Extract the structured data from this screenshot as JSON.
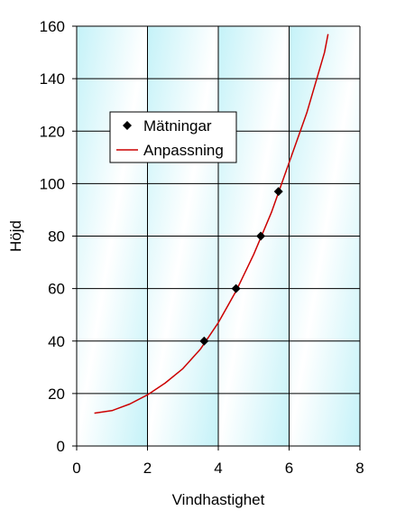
{
  "chart_data": {
    "type": "scatter",
    "title": "",
    "xlabel": "Vindhastighet",
    "ylabel": "Höjd",
    "xlim": [
      0,
      8
    ],
    "ylim": [
      0,
      160
    ],
    "xticks": [
      0,
      2,
      4,
      6,
      8
    ],
    "yticks": [
      0,
      20,
      40,
      60,
      80,
      100,
      120,
      140,
      160
    ],
    "grid": true,
    "legend_position": "upper-left",
    "series": [
      {
        "name": "Mätningar",
        "kind": "scatter",
        "marker": "diamond",
        "color": "#000000",
        "x": [
          3.6,
          4.5,
          5.2,
          5.7
        ],
        "y": [
          40,
          60,
          80,
          97
        ]
      },
      {
        "name": "Anpassning",
        "kind": "line",
        "color": "#cc0000",
        "x": [
          0.5,
          1.0,
          1.5,
          2.0,
          2.5,
          3.0,
          3.5,
          4.0,
          4.5,
          5.0,
          5.5,
          6.0,
          6.5,
          7.0,
          7.1
        ],
        "y": [
          12.5,
          13.5,
          16,
          19.5,
          24,
          29.5,
          37,
          47,
          59,
          73,
          89,
          108,
          127,
          150,
          157
        ]
      }
    ],
    "colors": {
      "plot_gradient_light": "#ffffff",
      "plot_gradient_dark": "#c4f2f8",
      "grid": "#000000",
      "axis": "#000000"
    }
  }
}
